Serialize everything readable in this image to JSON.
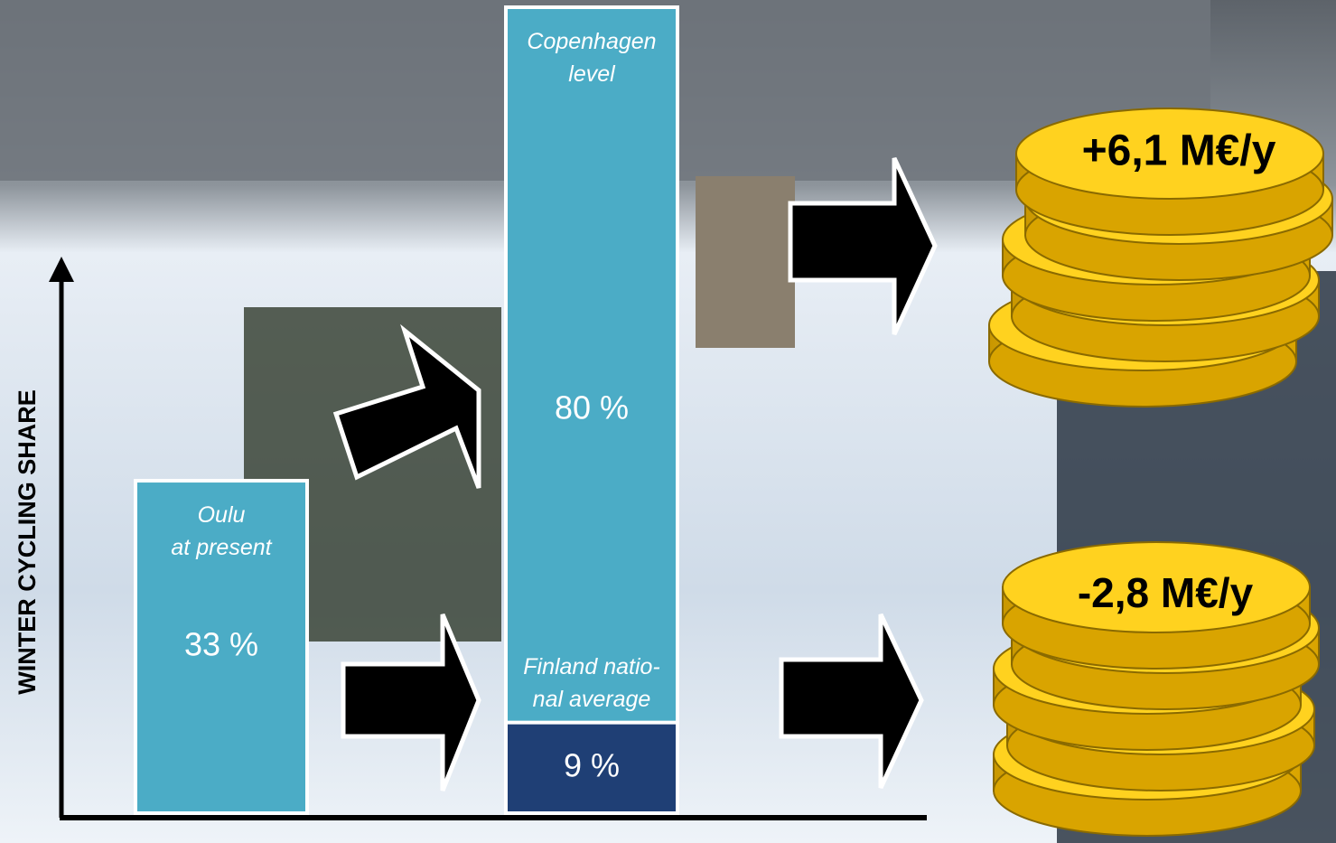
{
  "chart_data": {
    "type": "bar",
    "y_label": "WINTER CYCLING SHARE",
    "categories": [
      "Oulu\nat present",
      "Copenhagen\nlevel",
      "Finland natio-\nnal average"
    ],
    "values": [
      33,
      80,
      9
    ],
    "value_labels": [
      "33 %",
      "80 %",
      "9 %"
    ],
    "colors": [
      "#4bacc6",
      "#4bacc6",
      "#1f3f75"
    ],
    "ylim": [
      0,
      80
    ],
    "annotations": [
      "+6,1 M€/y",
      "-2,8 M€/y"
    ]
  }
}
